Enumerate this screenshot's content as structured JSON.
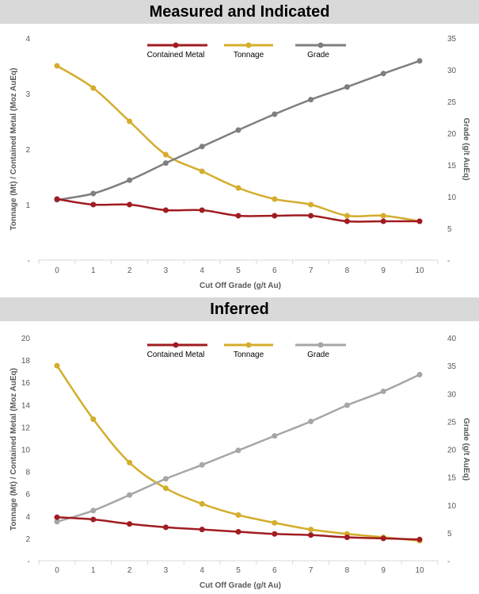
{
  "chart_data": [
    {
      "type": "line",
      "title": "Measured and Indicated",
      "xlabel": "Cut Off Grade (g/t Au)",
      "ylabel": "Tonnage (Mt) / Contained Metal (Moz AuEq)",
      "y2label": "Grade (g/t AuEq)",
      "categories": [
        "0",
        "1",
        "2",
        "3",
        "4",
        "5",
        "6",
        "7",
        "8",
        "9",
        "10"
      ],
      "ylim": [
        0,
        4
      ],
      "y2lim": [
        0,
        35
      ],
      "yticks": [
        "-",
        "1",
        "2",
        "3",
        "4"
      ],
      "y2ticks": [
        "-",
        "5",
        "10",
        "15",
        "20",
        "25",
        "30",
        "35"
      ],
      "legend_position": "top-center",
      "grid": false,
      "series": [
        {
          "name": "Contained Metal",
          "axis": "left",
          "color": "#a01c22",
          "values": [
            1.1,
            1.0,
            1.0,
            0.9,
            0.9,
            0.8,
            0.8,
            0.8,
            0.7,
            0.7,
            0.7
          ]
        },
        {
          "name": "Tonnage",
          "axis": "left",
          "color": "#d4ad2c",
          "values": [
            3.5,
            3.1,
            2.5,
            1.9,
            1.6,
            1.3,
            1.1,
            1.0,
            0.8,
            0.8,
            0.7
          ]
        },
        {
          "name": "Grade",
          "axis": "right",
          "color": "#7f7f7f",
          "values": [
            9.5,
            10.5,
            12.6,
            15.3,
            17.9,
            20.5,
            23.0,
            25.3,
            27.3,
            29.4,
            31.4
          ]
        }
      ]
    },
    {
      "type": "line",
      "title": "Inferred",
      "xlabel": "Cut Off Grade (g/t Au)",
      "ylabel": "Tonnage (Mt) / Contained Metal (Moz AuEq)",
      "y2label": "Grade (g/t AuEq)",
      "categories": [
        "0",
        "1",
        "2",
        "3",
        "4",
        "5",
        "6",
        "7",
        "8",
        "9",
        "10"
      ],
      "ylim": [
        0,
        20
      ],
      "y2lim": [
        0,
        40
      ],
      "yticks": [
        "-",
        "2",
        "4",
        "6",
        "8",
        "10",
        "12",
        "14",
        "16",
        "18",
        "20"
      ],
      "y2ticks": [
        "-",
        "5",
        "10",
        "15",
        "20",
        "25",
        "30",
        "35",
        "40"
      ],
      "legend_position": "top-center",
      "grid": false,
      "series": [
        {
          "name": "Contained Metal",
          "axis": "left",
          "color": "#a01c22",
          "values": [
            3.9,
            3.7,
            3.3,
            3.0,
            2.8,
            2.6,
            2.4,
            2.3,
            2.1,
            2.0,
            1.9
          ]
        },
        {
          "name": "Tonnage",
          "axis": "left",
          "color": "#d4ad2c",
          "values": [
            17.5,
            12.7,
            8.8,
            6.5,
            5.1,
            4.1,
            3.4,
            2.8,
            2.4,
            2.1,
            1.8
          ]
        },
        {
          "name": "Grade",
          "axis": "right",
          "color": "#a6a6a6",
          "values": [
            7.0,
            9.0,
            11.8,
            14.7,
            17.2,
            19.8,
            22.4,
            25.0,
            27.9,
            30.4,
            33.4
          ]
        }
      ]
    }
  ]
}
